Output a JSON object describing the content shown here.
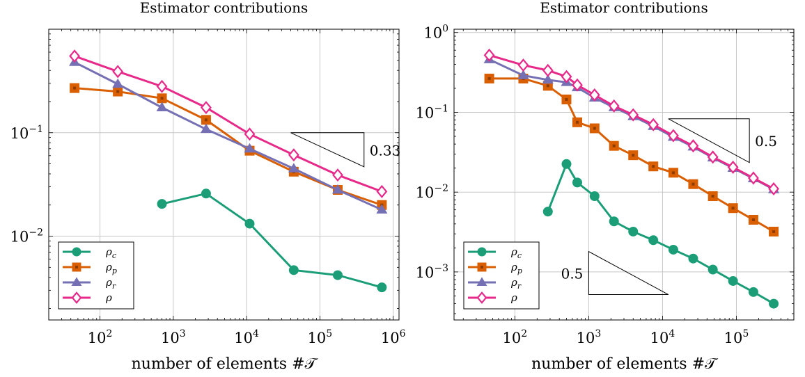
{
  "chart_data": [
    {
      "type": "line",
      "title": "Estimator contributions",
      "xlabel": "number of elements #𝒯",
      "ylabel": "",
      "xscale": "log",
      "yscale": "log",
      "xlim": [
        20,
        1200000
      ],
      "ylim": [
        0.00155,
        1
      ],
      "grid": true,
      "legend_position": "bottom-left",
      "x_ticks": [
        100,
        1000,
        10000,
        100000,
        1000000
      ],
      "x_tick_labels": [
        {
          "b": "10",
          "e": "2"
        },
        {
          "b": "10",
          "e": "3"
        },
        {
          "b": "10",
          "e": "4"
        },
        {
          "b": "10",
          "e": "5"
        },
        {
          "b": "10",
          "e": "6"
        }
      ],
      "y_ticks": [
        0.01,
        0.1
      ],
      "y_tick_labels": [
        {
          "b": "10",
          "e": "−2"
        },
        {
          "b": "10",
          "e": "−1"
        }
      ],
      "slope_triangles": [
        {
          "label": "0.33",
          "orientation": "above",
          "x1": 40000,
          "x2": 400000,
          "y_start": 0.1,
          "slope": -0.33
        }
      ],
      "series": [
        {
          "name": "ρc",
          "sym": "ρ",
          "sub": "c",
          "color": "#1b9e77",
          "marker": "circle",
          "x": [
            700,
            2800,
            11000,
            44000,
            175000,
            700000
          ],
          "values": [
            0.0205,
            0.0258,
            0.0132,
            0.0047,
            0.0042,
            0.0032
          ]
        },
        {
          "name": "ρp",
          "sym": "ρ",
          "sub": "p",
          "color": "#d95f02",
          "marker": "square",
          "x": [
            45,
            175,
            700,
            2800,
            11000,
            44000,
            175000,
            700000
          ],
          "values": [
            0.27,
            0.25,
            0.215,
            0.133,
            0.067,
            0.042,
            0.028,
            0.02
          ]
        },
        {
          "name": "ρr",
          "sym": "ρ",
          "sub": "r",
          "color": "#7570b3",
          "marker": "triangle",
          "x": [
            45,
            175,
            700,
            2800,
            11000,
            44000,
            175000,
            700000
          ],
          "values": [
            0.48,
            0.295,
            0.175,
            0.108,
            0.07,
            0.045,
            0.028,
            0.018
          ]
        },
        {
          "name": "ρ",
          "sym": "ρ",
          "sub": "",
          "color": "#e7298a",
          "marker": "diamond",
          "x": [
            45,
            175,
            700,
            2800,
            11000,
            44000,
            175000,
            700000
          ],
          "values": [
            0.55,
            0.39,
            0.28,
            0.175,
            0.097,
            0.061,
            0.039,
            0.027
          ]
        }
      ]
    },
    {
      "type": "line",
      "title": "Estimator contributions",
      "xlabel": "number of elements #𝒯",
      "ylabel": "",
      "xscale": "log",
      "yscale": "log",
      "xlim": [
        15,
        600000
      ],
      "ylim": [
        0.00025,
        1.1
      ],
      "grid": true,
      "legend_position": "bottom-left",
      "x_ticks": [
        100,
        1000,
        10000,
        100000
      ],
      "x_tick_labels": [
        {
          "b": "10",
          "e": "2"
        },
        {
          "b": "10",
          "e": "3"
        },
        {
          "b": "10",
          "e": "4"
        },
        {
          "b": "10",
          "e": "5"
        }
      ],
      "y_ticks": [
        0.001,
        0.01,
        0.1,
        1
      ],
      "y_tick_labels": [
        {
          "b": "10",
          "e": "−3"
        },
        {
          "b": "10",
          "e": "−2"
        },
        {
          "b": "10",
          "e": "−1"
        },
        {
          "b": "10",
          "e": "0"
        }
      ],
      "slope_triangles": [
        {
          "label": "0.5",
          "orientation": "above",
          "x1": 12000,
          "x2": 150000,
          "y_start": 0.083,
          "slope": -0.5
        },
        {
          "label": "0.5",
          "orientation": "below",
          "x1": 1000,
          "x2": 12000,
          "y_start": 0.0018,
          "slope": -0.5
        }
      ],
      "series": [
        {
          "name": "ρc",
          "sym": "ρ",
          "sub": "c",
          "color": "#1b9e77",
          "marker": "circle",
          "x": [
            280,
            500,
            700,
            1200,
            2200,
            4000,
            7500,
            14000,
            26000,
            48000,
            90000,
            170000,
            320000
          ],
          "values": [
            0.0057,
            0.0225,
            0.0132,
            0.0089,
            0.0043,
            0.0032,
            0.0025,
            0.0019,
            0.00147,
            0.00107,
            0.00077,
            0.00056,
            0.0004
          ]
        },
        {
          "name": "ρp",
          "sym": "ρ",
          "sub": "p",
          "color": "#d95f02",
          "marker": "square",
          "x": [
            45,
            130,
            280,
            500,
            700,
            1200,
            2200,
            4000,
            7500,
            14000,
            26000,
            48000,
            90000,
            170000,
            320000
          ],
          "values": [
            0.265,
            0.265,
            0.215,
            0.145,
            0.075,
            0.063,
            0.038,
            0.029,
            0.021,
            0.0175,
            0.0126,
            0.0089,
            0.0063,
            0.0045,
            0.0032
          ]
        },
        {
          "name": "ρr",
          "sym": "ρ",
          "sub": "r",
          "color": "#7570b3",
          "marker": "triangle",
          "x": [
            45,
            130,
            280,
            500,
            700,
            1200,
            2200,
            4000,
            7500,
            14000,
            26000,
            48000,
            90000,
            170000,
            320000
          ],
          "values": [
            0.46,
            0.29,
            0.255,
            0.238,
            0.205,
            0.152,
            0.115,
            0.089,
            0.067,
            0.049,
            0.037,
            0.027,
            0.02,
            0.0148,
            0.0108
          ]
        },
        {
          "name": "ρ",
          "sym": "ρ",
          "sub": "",
          "color": "#e7298a",
          "marker": "diamond",
          "x": [
            45,
            130,
            280,
            500,
            700,
            1200,
            2200,
            4000,
            7500,
            14000,
            26000,
            48000,
            90000,
            170000,
            320000
          ],
          "values": [
            0.52,
            0.39,
            0.335,
            0.28,
            0.22,
            0.165,
            0.12,
            0.093,
            0.07,
            0.051,
            0.038,
            0.0275,
            0.0205,
            0.015,
            0.011
          ]
        }
      ]
    }
  ]
}
